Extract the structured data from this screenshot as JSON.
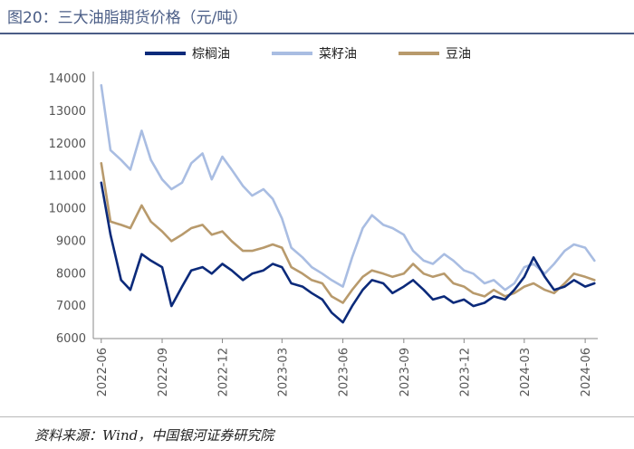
{
  "header": {
    "title": "图20：三大油脂期货价格（元/吨）"
  },
  "footer": {
    "source": "资料来源：Wind，中国银河证券研究院"
  },
  "chart_data": {
    "type": "line",
    "title": "三大油脂期货价格（元/吨）",
    "xlabel": "",
    "ylabel": "",
    "ylim": [
      6000,
      14000
    ],
    "yticks": [
      6000,
      7000,
      8000,
      9000,
      10000,
      11000,
      12000,
      13000,
      14000
    ],
    "xticks": [
      "2022-06",
      "2022-09",
      "2022-12",
      "2023-03",
      "2023-06",
      "2023-09",
      "2023-12",
      "2024-03",
      "2024-06"
    ],
    "legend_position": "top",
    "x": [
      "2022-06-01",
      "2022-06-15",
      "2022-07-01",
      "2022-07-15",
      "2022-08-01",
      "2022-08-15",
      "2022-09-01",
      "2022-09-15",
      "2022-10-01",
      "2022-10-15",
      "2022-11-01",
      "2022-11-15",
      "2022-12-01",
      "2022-12-15",
      "2023-01-01",
      "2023-01-15",
      "2023-02-01",
      "2023-02-15",
      "2023-03-01",
      "2023-03-15",
      "2023-04-01",
      "2023-04-15",
      "2023-05-01",
      "2023-05-15",
      "2023-06-01",
      "2023-06-15",
      "2023-07-01",
      "2023-07-15",
      "2023-08-01",
      "2023-08-15",
      "2023-09-01",
      "2023-09-15",
      "2023-10-01",
      "2023-10-15",
      "2023-11-01",
      "2023-11-15",
      "2023-12-01",
      "2023-12-15",
      "2024-01-01",
      "2024-01-15",
      "2024-02-01",
      "2024-02-15",
      "2024-03-01",
      "2024-03-15",
      "2024-04-01",
      "2024-04-15",
      "2024-05-01",
      "2024-05-15",
      "2024-06-01",
      "2024-06-15"
    ],
    "series": [
      {
        "name": "棕榈油",
        "color": "#0b2a7a",
        "values": [
          10800,
          9200,
          7800,
          7500,
          8600,
          8400,
          8200,
          7000,
          7600,
          8100,
          8200,
          8000,
          8300,
          8100,
          7800,
          8000,
          8100,
          8300,
          8200,
          7700,
          7600,
          7400,
          7200,
          6800,
          6500,
          7000,
          7500,
          7800,
          7700,
          7400,
          7600,
          7800,
          7500,
          7200,
          7300,
          7100,
          7200,
          7000,
          7100,
          7300,
          7200,
          7500,
          7900,
          8500,
          7900,
          7500,
          7600,
          7800,
          7600,
          7700
        ]
      },
      {
        "name": "菜籽油",
        "color": "#a9bde2",
        "values": [
          13800,
          11800,
          11500,
          11200,
          12400,
          11500,
          10900,
          10600,
          10800,
          11400,
          11700,
          10900,
          11600,
          11200,
          10700,
          10400,
          10600,
          10300,
          9700,
          8800,
          8500,
          8200,
          8000,
          7800,
          7600,
          8500,
          9400,
          9800,
          9500,
          9400,
          9200,
          8700,
          8400,
          8300,
          8600,
          8400,
          8100,
          8000,
          7700,
          7800,
          7500,
          7700,
          8200,
          8300,
          8000,
          8300,
          8700,
          8900,
          8800,
          8400
        ]
      },
      {
        "name": "豆油",
        "color": "#b89a6c",
        "values": [
          11400,
          9600,
          9500,
          9400,
          10100,
          9600,
          9300,
          9000,
          9200,
          9400,
          9500,
          9200,
          9300,
          9000,
          8700,
          8700,
          8800,
          8900,
          8800,
          8200,
          8000,
          7800,
          7700,
          7300,
          7100,
          7500,
          7900,
          8100,
          8000,
          7900,
          8000,
          8300,
          8000,
          7900,
          8000,
          7700,
          7600,
          7400,
          7300,
          7500,
          7300,
          7400,
          7600,
          7700,
          7500,
          7400,
          7700,
          8000,
          7900,
          7800
        ]
      }
    ]
  }
}
